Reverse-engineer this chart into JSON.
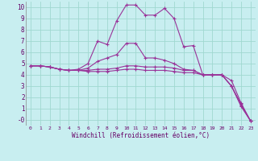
{
  "xlabel": "Windchill (Refroidissement éolien,°C)",
  "background_color": "#c8eef0",
  "grid_color": "#a0d8d0",
  "line_color": "#993399",
  "xlim": [
    -0.5,
    23.5
  ],
  "ylim": [
    -0.5,
    10.5
  ],
  "ytick_labels": [
    "10",
    "9",
    "8",
    "7",
    "6",
    "5",
    "4",
    "3",
    "2",
    "1",
    "-0"
  ],
  "ytick_vals": [
    10,
    9,
    8,
    7,
    6,
    5,
    4,
    3,
    2,
    1,
    0
  ],
  "xtick_vals": [
    0,
    1,
    2,
    3,
    4,
    5,
    6,
    7,
    8,
    9,
    10,
    11,
    12,
    13,
    14,
    15,
    16,
    17,
    18,
    19,
    20,
    21,
    22,
    23
  ],
  "xtick_labels": [
    "0",
    "1",
    "2",
    "3",
    "4",
    "5",
    "6",
    "7",
    "8",
    "9",
    "10",
    "11",
    "12",
    "13",
    "14",
    "15",
    "16",
    "17",
    "18",
    "19",
    "20",
    "21",
    "22",
    "23"
  ],
  "series": [
    {
      "x": [
        0,
        1,
        2,
        3,
        4,
        5,
        6,
        7,
        8,
        9,
        10,
        11,
        12,
        13,
        14,
        15,
        16,
        17,
        18,
        19,
        20,
        21,
        22,
        23
      ],
      "y": [
        4.8,
        4.8,
        4.7,
        4.5,
        4.4,
        4.5,
        5.0,
        7.0,
        6.7,
        8.8,
        10.2,
        10.2,
        9.3,
        9.3,
        9.9,
        9.0,
        6.5,
        6.6,
        4.0,
        4.0,
        4.0,
        3.5,
        1.5,
        -0.1
      ]
    },
    {
      "x": [
        0,
        1,
        2,
        3,
        4,
        5,
        6,
        7,
        8,
        9,
        10,
        11,
        12,
        13,
        14,
        15,
        16,
        17,
        18,
        19,
        20,
        21,
        22,
        23
      ],
      "y": [
        4.8,
        4.8,
        4.7,
        4.5,
        4.4,
        4.4,
        4.6,
        5.2,
        5.5,
        5.8,
        6.8,
        6.8,
        5.5,
        5.5,
        5.3,
        5.0,
        4.5,
        4.4,
        4.0,
        4.0,
        4.0,
        3.0,
        1.4,
        -0.1
      ]
    },
    {
      "x": [
        0,
        1,
        2,
        3,
        4,
        5,
        6,
        7,
        8,
        9,
        10,
        11,
        12,
        13,
        14,
        15,
        16,
        17,
        18,
        19,
        20,
        21,
        22,
        23
      ],
      "y": [
        4.8,
        4.8,
        4.7,
        4.5,
        4.4,
        4.4,
        4.4,
        4.5,
        4.5,
        4.6,
        4.8,
        4.8,
        4.7,
        4.7,
        4.7,
        4.6,
        4.4,
        4.4,
        4.0,
        4.0,
        4.0,
        3.0,
        1.3,
        -0.1
      ]
    },
    {
      "x": [
        0,
        1,
        2,
        3,
        4,
        5,
        6,
        7,
        8,
        9,
        10,
        11,
        12,
        13,
        14,
        15,
        16,
        17,
        18,
        19,
        20,
        21,
        22,
        23
      ],
      "y": [
        4.8,
        4.8,
        4.7,
        4.5,
        4.4,
        4.4,
        4.3,
        4.3,
        4.3,
        4.4,
        4.5,
        4.5,
        4.4,
        4.4,
        4.4,
        4.3,
        4.2,
        4.2,
        4.0,
        4.0,
        4.0,
        3.0,
        1.2,
        -0.1
      ]
    }
  ]
}
